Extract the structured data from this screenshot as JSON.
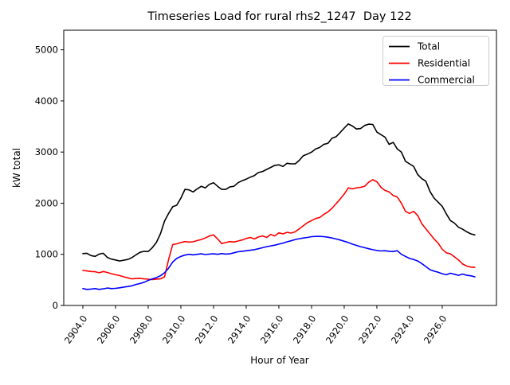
{
  "figure": {
    "background": "#ffffff",
    "frame_color": "#000000"
  },
  "chart_data": {
    "type": "line",
    "title": "Timeseries Load for rural rhs2_1247  Day 122",
    "xlabel": "Hour of Year",
    "ylabel": "kW total",
    "xlim": [
      2902.83,
      2929.32
    ],
    "ylim": [
      0,
      5383
    ],
    "grid": false,
    "legend_position": "upper right",
    "x_ticks": [
      {
        "value": 2904,
        "label": "2904.0"
      },
      {
        "value": 2906,
        "label": "2906.0"
      },
      {
        "value": 2908,
        "label": "2908.0"
      },
      {
        "value": 2910,
        "label": "2910.0"
      },
      {
        "value": 2912,
        "label": "2912.0"
      },
      {
        "value": 2914,
        "label": "2914.0"
      },
      {
        "value": 2916,
        "label": "2916.0"
      },
      {
        "value": 2918,
        "label": "2918.0"
      },
      {
        "value": 2920,
        "label": "2920.0"
      },
      {
        "value": 2922,
        "label": "2922.0"
      },
      {
        "value": 2924,
        "label": "2924.0"
      },
      {
        "value": 2926,
        "label": "2926.0"
      }
    ],
    "y_ticks": [
      {
        "value": 0,
        "label": "0"
      },
      {
        "value": 1000,
        "label": "1000"
      },
      {
        "value": 2000,
        "label": "2000"
      },
      {
        "value": 3000,
        "label": "3000"
      },
      {
        "value": 4000,
        "label": "4000"
      },
      {
        "value": 5000,
        "label": "5000"
      }
    ],
    "x_start": 2904.0,
    "x_step": 0.25,
    "series": [
      {
        "name": "Total",
        "color": "#000000",
        "values": [
          1015,
          1020,
          975,
          960,
          1005,
          1020,
          940,
          905,
          890,
          870,
          885,
          900,
          935,
          990,
          1040,
          1060,
          1055,
          1130,
          1230,
          1400,
          1650,
          1800,
          1930,
          1960,
          2100,
          2270,
          2260,
          2220,
          2280,
          2330,
          2300,
          2370,
          2400,
          2330,
          2270,
          2270,
          2320,
          2330,
          2400,
          2440,
          2470,
          2510,
          2540,
          2600,
          2620,
          2660,
          2700,
          2740,
          2750,
          2720,
          2780,
          2770,
          2770,
          2840,
          2930,
          2960,
          3000,
          3060,
          3090,
          3150,
          3170,
          3270,
          3300,
          3380,
          3470,
          3550,
          3510,
          3450,
          3460,
          3520,
          3545,
          3540,
          3390,
          3340,
          3290,
          3150,
          3190,
          3060,
          3000,
          2820,
          2770,
          2720,
          2560,
          2480,
          2430,
          2230,
          2100,
          2020,
          1940,
          1790,
          1660,
          1610,
          1530,
          1490,
          1440,
          1400,
          1380
        ]
      },
      {
        "name": "Residential",
        "color": "#ff0000",
        "values": [
          685,
          675,
          665,
          660,
          640,
          665,
          645,
          620,
          600,
          585,
          560,
          540,
          520,
          528,
          530,
          520,
          515,
          505,
          515,
          520,
          560,
          900,
          1190,
          1205,
          1230,
          1250,
          1240,
          1245,
          1270,
          1290,
          1320,
          1360,
          1380,
          1300,
          1210,
          1230,
          1250,
          1240,
          1260,
          1280,
          1310,
          1330,
          1300,
          1340,
          1360,
          1330,
          1390,
          1360,
          1420,
          1400,
          1430,
          1415,
          1440,
          1500,
          1560,
          1620,
          1660,
          1700,
          1720,
          1780,
          1830,
          1900,
          1990,
          2080,
          2180,
          2300,
          2280,
          2300,
          2310,
          2330,
          2410,
          2460,
          2420,
          2310,
          2250,
          2220,
          2150,
          2120,
          2000,
          1840,
          1800,
          1840,
          1760,
          1600,
          1500,
          1400,
          1300,
          1220,
          1100,
          1030,
          1010,
          950,
          890,
          810,
          770,
          750,
          745
        ]
      },
      {
        "name": "Commercial",
        "color": "#0000ff",
        "values": [
          330,
          315,
          320,
          330,
          315,
          325,
          340,
          330,
          335,
          345,
          360,
          370,
          385,
          410,
          430,
          455,
          490,
          520,
          545,
          580,
          640,
          730,
          850,
          920,
          960,
          985,
          1000,
          990,
          1000,
          1010,
          995,
          1005,
          1010,
          1000,
          1015,
          1005,
          1010,
          1030,
          1050,
          1060,
          1070,
          1080,
          1090,
          1110,
          1130,
          1150,
          1165,
          1180,
          1200,
          1220,
          1245,
          1265,
          1290,
          1305,
          1320,
          1330,
          1345,
          1350,
          1350,
          1345,
          1335,
          1320,
          1300,
          1280,
          1255,
          1230,
          1200,
          1175,
          1150,
          1130,
          1110,
          1090,
          1075,
          1065,
          1070,
          1060,
          1055,
          1070,
          1000,
          960,
          920,
          900,
          870,
          820,
          760,
          700,
          670,
          650,
          620,
          600,
          630,
          610,
          590,
          615,
          590,
          580,
          560
        ]
      }
    ]
  }
}
